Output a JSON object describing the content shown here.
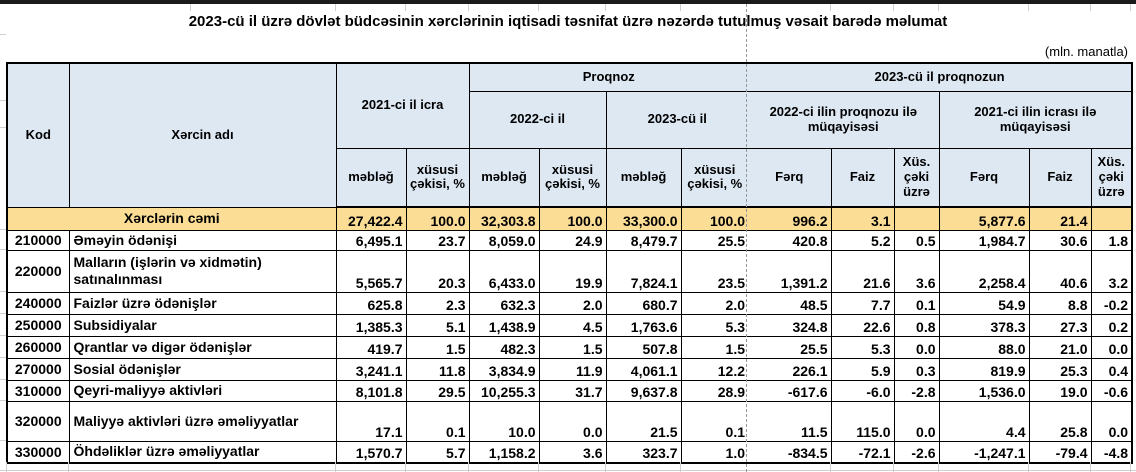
{
  "title": "2023-cü il üzrə dövlət büdcəsinin xərclərinin iqtisadi təsnifat üzrə nəzərdə tutulmuş vəsait barədə məlumat",
  "unit_note": "(mln. manatla)",
  "colors": {
    "header_bg": "#DDE8F3",
    "total_row_bg": "#FBDD96",
    "grid": "#000000",
    "page_break_line": "#979797",
    "top_strip": "#1A1A1A"
  },
  "table": {
    "header": {
      "kod": "Kod",
      "name": "Xərcin adı",
      "exec_2021": "2021-ci il icra",
      "proqnoz": "Proqnoz",
      "proqnoz_2023": "2023-cü il proqnozun",
      "year_2022": "2022-ci il",
      "year_2023": "2023-cü il",
      "cmp_2022": "2022-ci ilin proqnozu ilə müqayisəsi",
      "cmp_2021": "2021-ci ilin icrası ilə müqayisəsi",
      "amount": "məbləğ",
      "share": "xüsusi çəkisi, %",
      "ferq": "Fərq",
      "faiz": "Faiz",
      "share_short": "Xüs. çəki üzrə"
    },
    "rows": [
      {
        "total": true,
        "kod": "",
        "name": "Xərclərin cəmi",
        "values": [
          "27,422.4",
          "100.0",
          "32,303.8",
          "100.0",
          "33,300.0",
          "100.0",
          "996.2",
          "3.1",
          "",
          "5,877.6",
          "21.4",
          ""
        ]
      },
      {
        "kod": "210000",
        "name": "Əməyin ödənişi",
        "values": [
          "6,495.1",
          "23.7",
          "8,059.0",
          "24.9",
          "8,479.7",
          "25.5",
          "420.8",
          "5.2",
          "0.5",
          "1,984.7",
          "30.6",
          "1.8"
        ]
      },
      {
        "kod": "220000",
        "name": "Malların (işlərin və xidmətin) satınalınması",
        "values": [
          "5,565.7",
          "20.3",
          "6,433.0",
          "19.9",
          "7,824.1",
          "23.5",
          "1,391.2",
          "21.6",
          "3.6",
          "2,258.4",
          "40.6",
          "3.2"
        ]
      },
      {
        "kod": "240000",
        "name": "Faizlər üzrə ödənişlər",
        "values": [
          "625.8",
          "2.3",
          "632.3",
          "2.0",
          "680.7",
          "2.0",
          "48.5",
          "7.7",
          "0.1",
          "54.9",
          "8.8",
          "-0.2"
        ]
      },
      {
        "kod": "250000",
        "name": "Subsidiyalar",
        "values": [
          "1,385.3",
          "5.1",
          "1,438.9",
          "4.5",
          "1,763.6",
          "5.3",
          "324.8",
          "22.6",
          "0.8",
          "378.3",
          "27.3",
          "0.2"
        ]
      },
      {
        "kod": "260000",
        "name": "Qrantlar və digər ödənişlər",
        "values": [
          "419.7",
          "1.5",
          "482.3",
          "1.5",
          "507.8",
          "1.5",
          "25.5",
          "5.3",
          "0.0",
          "88.0",
          "21.0",
          "0.0"
        ]
      },
      {
        "kod": "270000",
        "name": "Sosial ödənişlər",
        "values": [
          "3,241.1",
          "11.8",
          "3,834.9",
          "11.9",
          "4,061.1",
          "12.2",
          "226.1",
          "5.9",
          "0.3",
          "819.9",
          "25.3",
          "0.4"
        ]
      },
      {
        "kod": "310000",
        "name": "Qeyri-maliyyə aktivləri",
        "values": [
          "8,101.8",
          "29.5",
          "10,255.3",
          "31.7",
          "9,637.8",
          "28.9",
          "-617.6",
          "-6.0",
          "-2.8",
          "1,536.0",
          "19.0",
          "-0.6"
        ]
      },
      {
        "kod": "320000",
        "name": "Maliyyə aktivləri üzrə əməliyyatlar",
        "values": [
          "17.1",
          "0.1",
          "10.0",
          "0.0",
          "21.5",
          "0.1",
          "11.5",
          "115.0",
          "0.0",
          "4.4",
          "25.8",
          "0.0"
        ]
      },
      {
        "kod": "330000",
        "name": "Öhdəliklər üzrə əməliyyatlar",
        "values": [
          "1,570.7",
          "5.7",
          "1,158.2",
          "3.6",
          "323.7",
          "1.0",
          "-834.5",
          "-72.1",
          "-2.6",
          "-1,247.1",
          "-79.4",
          "-4.8"
        ]
      }
    ]
  }
}
